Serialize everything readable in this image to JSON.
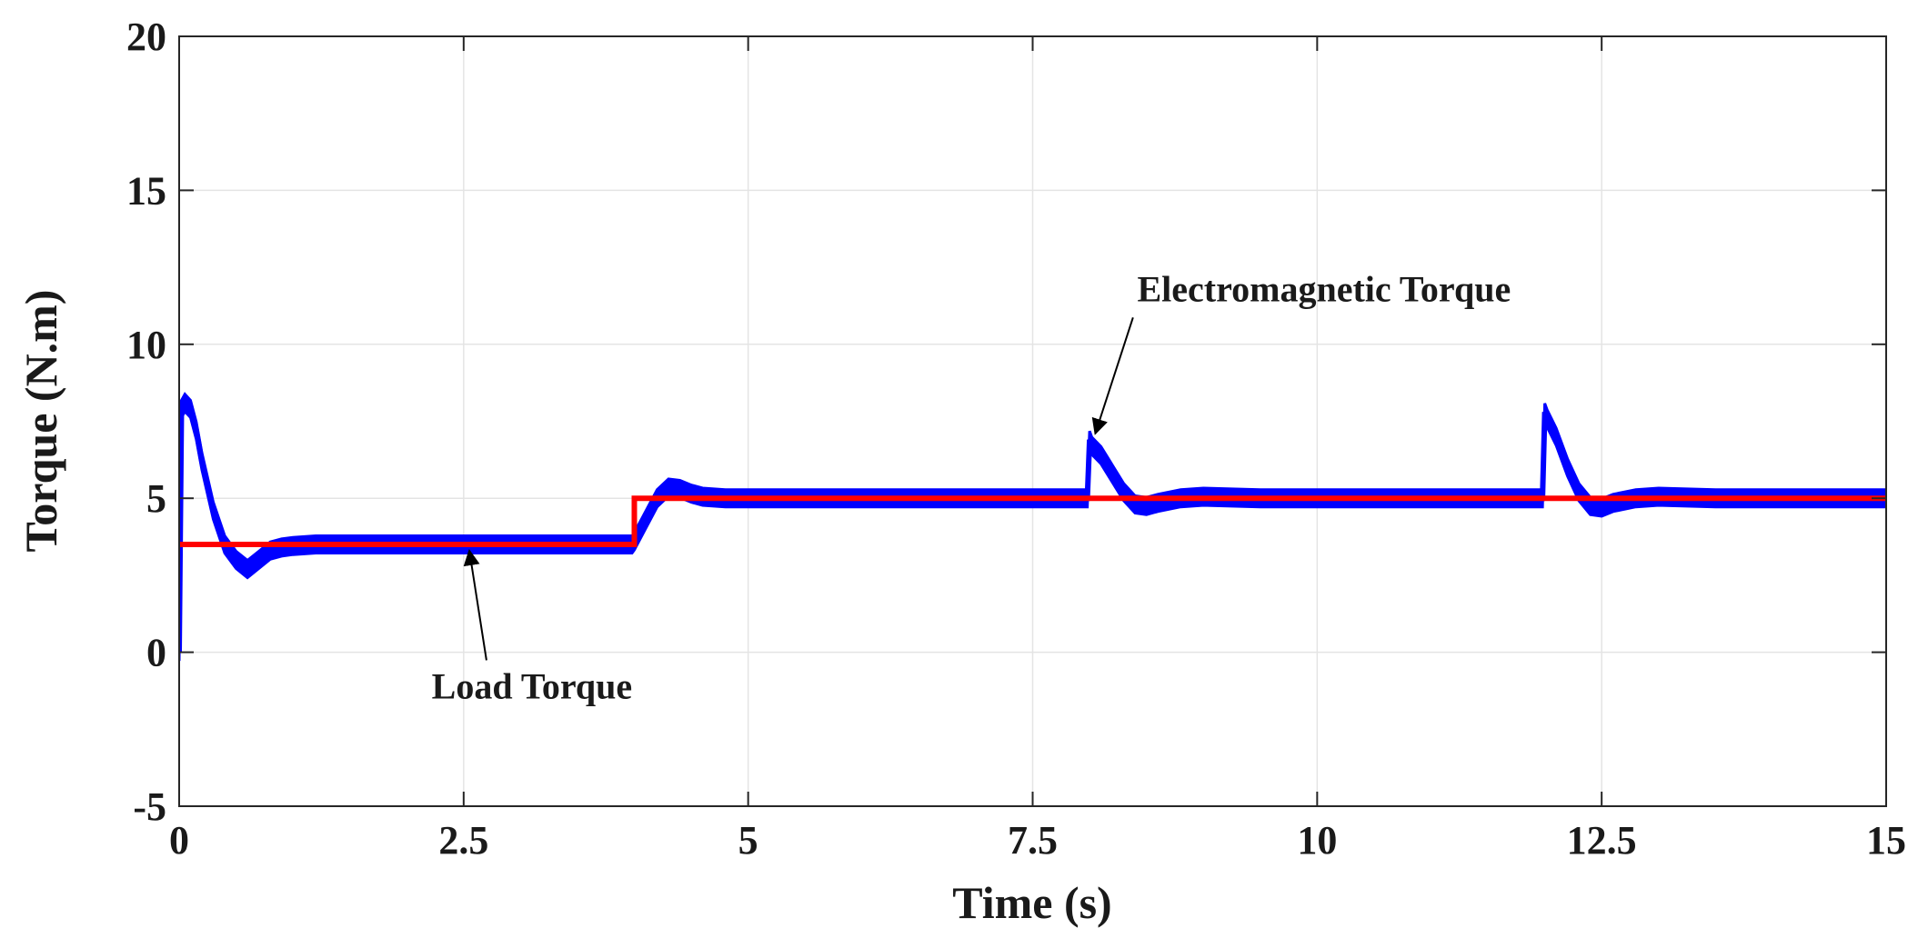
{
  "chart_data": {
    "type": "line",
    "title": "",
    "xlabel": "Time (s)",
    "ylabel": "Torque  (N.m)",
    "xlim": [
      0,
      15
    ],
    "ylim": [
      -5,
      20
    ],
    "xticks": [
      0,
      2.5,
      5,
      7.5,
      10,
      12.5,
      15
    ],
    "yticks": [
      -5,
      0,
      5,
      10,
      15,
      20
    ],
    "xtick_labels": [
      "0",
      "2.5",
      "5",
      "7.5",
      "10",
      "12.5",
      "15"
    ],
    "ytick_labels": [
      "-5",
      "0",
      "5",
      "10",
      "15",
      "20"
    ],
    "grid": true,
    "legend": "none",
    "series": [
      {
        "label": "Electromagnetic Torque",
        "color": "#0000ff",
        "ripple_band": 0.28,
        "x": [
          0,
          0.02,
          0.05,
          0.1,
          0.15,
          0.2,
          0.3,
          0.4,
          0.5,
          0.6,
          0.7,
          0.8,
          0.9,
          1.0,
          1.2,
          1.5,
          2.0,
          2.5,
          3.0,
          3.5,
          3.98,
          4.0,
          4.1,
          4.2,
          4.3,
          4.4,
          4.5,
          4.6,
          4.8,
          5.0,
          6.0,
          7.0,
          7.98,
          8.0,
          8.02,
          8.1,
          8.2,
          8.3,
          8.4,
          8.5,
          8.6,
          8.8,
          9.0,
          9.5,
          10.0,
          11.0,
          11.98,
          12.0,
          12.02,
          12.1,
          12.2,
          12.3,
          12.4,
          12.5,
          12.6,
          12.8,
          13.0,
          13.5,
          14.0,
          15.0
        ],
        "y": [
          0,
          7.9,
          8.1,
          7.9,
          7.2,
          6.2,
          4.6,
          3.5,
          3.0,
          2.7,
          3.0,
          3.3,
          3.4,
          3.45,
          3.5,
          3.5,
          3.5,
          3.5,
          3.5,
          3.5,
          3.5,
          3.6,
          4.3,
          5.0,
          5.35,
          5.3,
          5.15,
          5.05,
          5.0,
          5.0,
          5.0,
          5.0,
          5.0,
          6.9,
          6.7,
          6.4,
          5.8,
          5.2,
          4.8,
          4.75,
          4.85,
          5.0,
          5.05,
          5.0,
          5.0,
          5.0,
          5.0,
          7.8,
          7.6,
          7.0,
          6.0,
          5.2,
          4.75,
          4.7,
          4.85,
          5.0,
          5.05,
          5.0,
          5.0,
          5.0
        ]
      },
      {
        "label": "Load Torque",
        "color": "#ff0000",
        "x": [
          0,
          4.0,
          4.0,
          15.0
        ],
        "y": [
          3.5,
          3.5,
          5.0,
          5.0
        ]
      }
    ],
    "annotations": [
      {
        "text": "Electromagnetic Torque",
        "text_at": [
          10.06,
          11.4
        ],
        "arrow_to": [
          8.05,
          7.1
        ]
      },
      {
        "text": "Load Torque",
        "text_at": [
          3.1,
          -1.5
        ],
        "arrow_to": [
          2.55,
          3.3
        ]
      }
    ]
  }
}
